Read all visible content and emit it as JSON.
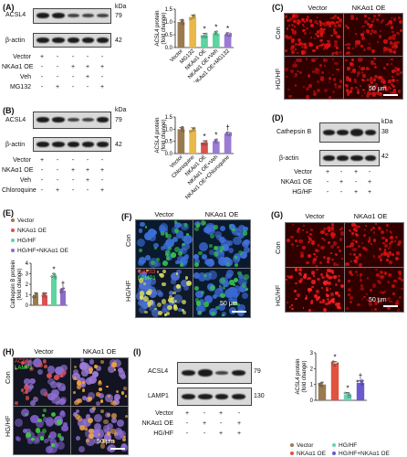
{
  "panels": {
    "A": {
      "label": "(A)",
      "blot_rows": [
        "ACSL4",
        "β-actin"
      ],
      "kda_header": "kDa",
      "kda": [
        "79",
        "42"
      ],
      "conditions": [
        {
          "name": "Vector",
          "signs": [
            "+",
            "-",
            "-",
            "-",
            "-"
          ]
        },
        {
          "name": "NKAα1 OE",
          "signs": [
            "-",
            "-",
            "+",
            "+",
            "+"
          ]
        },
        {
          "name": "Veh",
          "signs": [
            "-",
            "-",
            "-",
            "+",
            "-"
          ]
        },
        {
          "name": "MG132",
          "signs": [
            "-",
            "+",
            "-",
            "-",
            "+"
          ]
        }
      ]
    },
    "B": {
      "label": "(B)",
      "blot_rows": [
        "ACSL4",
        "β-actin"
      ],
      "kda_header": "kDa",
      "kda": [
        "79",
        "42"
      ],
      "conditions": [
        {
          "name": "Vector",
          "signs": [
            "+",
            "-",
            "-",
            "-",
            "-"
          ]
        },
        {
          "name": "NKAα1 OE",
          "signs": [
            "-",
            "-",
            "+",
            "+",
            "+"
          ]
        },
        {
          "name": "Veh",
          "signs": [
            "-",
            "-",
            "-",
            "+",
            "-"
          ]
        },
        {
          "name": "Chloroquine",
          "signs": [
            "-",
            "+",
            "-",
            "-",
            "+"
          ]
        }
      ]
    },
    "C": {
      "label": "(C)",
      "columns": [
        "Vector",
        "NKAα1 OE"
      ],
      "rows": [
        "Con",
        "HG/HF"
      ],
      "scale": "50 μm"
    },
    "D": {
      "label": "(D)",
      "blot_rows": [
        "Cathepsin B",
        "β-actin"
      ],
      "kda_header": "kDa",
      "kda": [
        "38",
        "42"
      ],
      "conditions": [
        {
          "name": "Vector",
          "signs": [
            "+",
            "-",
            "+",
            "-"
          ]
        },
        {
          "name": "NKAα1 OE",
          "signs": [
            "-",
            "+",
            "-",
            "+"
          ]
        },
        {
          "name": "HG/HF",
          "signs": [
            "-",
            "-",
            "+",
            "+"
          ]
        }
      ]
    },
    "E": {
      "label": "(E)",
      "legend": [
        "Vector",
        "NKAα1 OE",
        "HG/HF",
        "HG/HF+NKAα1 OE"
      ]
    },
    "F": {
      "label": "(F)",
      "columns": [
        "Vector",
        "NKAα1 OE"
      ],
      "rows": [
        "Con",
        "HG/HF"
      ],
      "stain1": "GALS3",
      "stain2": "LAMP1",
      "scale": "50 μm"
    },
    "G": {
      "label": "(G)",
      "columns": [
        "Vector",
        "NKAα1 OE"
      ],
      "rows": [
        "Con",
        "HG/HF"
      ],
      "scale": "50 μm"
    },
    "H": {
      "label": "(H)",
      "columns": [
        "Vector",
        "NKAα1 OE"
      ],
      "rows": [
        "Con",
        "HG/HF"
      ],
      "stain1": "ACSL4",
      "stain2": "LAMP1",
      "scale": "50 μm"
    },
    "I": {
      "label": "(I)",
      "blot_rows": [
        "ACSL4",
        "LAMP1"
      ],
      "kda": [
        "79",
        "130"
      ],
      "conditions": [
        {
          "name": "Vector",
          "signs": [
            "+",
            "-",
            "+",
            "-"
          ]
        },
        {
          "name": "NKAα1 OE",
          "signs": [
            "-",
            "+",
            "-",
            "+"
          ]
        },
        {
          "name": "HG/HF",
          "signs": [
            "-",
            "-",
            "+",
            "+"
          ]
        }
      ],
      "legend": [
        "Vector",
        "HG/HF",
        "NKAα1 OE",
        "HG/HF+NKAα1 OE"
      ]
    }
  },
  "colors": {
    "vector": "#9a7b4f",
    "treat2": "#e8b84a",
    "nka": "#e07060",
    "combo": "#9b7bd4",
    "nka_E": "#d9534f",
    "hg_E": "#5fd3a0",
    "combo_E": "#8e6cc7",
    "hg_I": "#6ad1b4",
    "nka_I": "#e0533f",
    "combo_I": "#6a5acd"
  },
  "chart_data": [
    {
      "type": "bar",
      "panel": "A",
      "categories": [
        "Vector",
        "MG132",
        "NKAα1 OE",
        "NKAα1 OE+Veh",
        "NKAα1 OE+MG132"
      ],
      "values": [
        1.0,
        1.2,
        0.48,
        0.55,
        0.5
      ],
      "ylabel": "ACSL4 protein\n(fold change)",
      "ylim": [
        0,
        1.5
      ],
      "yticks": [
        "0.0",
        "0.5",
        "1.0",
        "1.5"
      ],
      "annotations": [
        "",
        "",
        "*",
        "*",
        "*"
      ]
    },
    {
      "type": "bar",
      "panel": "B",
      "categories": [
        "Vector",
        "Chloroquine",
        "NKAα1 OE",
        "NKAα1 OE+Veh",
        "NKAα1 OE+Chloroquine"
      ],
      "values": [
        1.0,
        0.98,
        0.45,
        0.5,
        0.8
      ],
      "ylabel": "ACSL4 protein\n(fold change)",
      "ylim": [
        0,
        1.5
      ],
      "yticks": [
        "0.0",
        "0.5",
        "1.0",
        "1.5"
      ],
      "annotations": [
        "",
        "",
        "*",
        "*",
        "†"
      ]
    },
    {
      "type": "bar",
      "panel": "E",
      "categories": [
        "Vector",
        "NKAα1 OE",
        "HG/HF",
        "HG/HF+NKAα1 OE"
      ],
      "values": [
        1.0,
        0.95,
        2.8,
        1.4
      ],
      "ylabel": "Cathepsin B protein\n(fold change)",
      "ylim": [
        0,
        4
      ],
      "yticks": [
        "0",
        "1",
        "2",
        "3",
        "4"
      ],
      "annotations": [
        "",
        "",
        "*",
        "†"
      ]
    },
    {
      "type": "bar",
      "panel": "I",
      "categories": [
        "Vector",
        "NKAα1 OE",
        "HG/HF",
        "HG/HF+NKAα1 OE"
      ],
      "values": [
        1.0,
        2.3,
        0.35,
        1.1
      ],
      "ylabel": "ACSL4 protein\n(fold change)",
      "ylim": [
        0,
        3
      ],
      "yticks": [
        "0",
        "1",
        "2",
        "3"
      ],
      "annotations": [
        "",
        "*",
        "*",
        "†"
      ]
    }
  ]
}
